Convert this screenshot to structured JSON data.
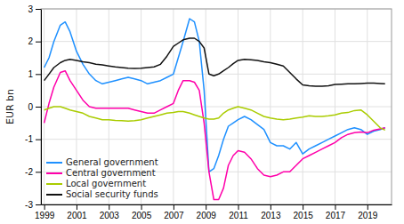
{
  "chart_data": {
    "type": "line",
    "y_label": "EUR bn",
    "x": [
      1999.0,
      1999.3,
      1999.6,
      2000.0,
      2000.3,
      2000.6,
      2001.0,
      2001.4,
      2001.8,
      2002.2,
      2002.6,
      2003.0,
      2003.4,
      2003.8,
      2004.2,
      2004.6,
      2005.0,
      2005.4,
      2005.8,
      2006.2,
      2006.6,
      2007.0,
      2007.3,
      2007.6,
      2008.0,
      2008.3,
      2008.6,
      2008.9,
      2009.2,
      2009.5,
      2009.8,
      2010.1,
      2010.4,
      2010.7,
      2011.0,
      2011.4,
      2011.8,
      2012.2,
      2012.6,
      2013.0,
      2013.4,
      2013.8,
      2014.2,
      2014.6,
      2015.0,
      2015.4,
      2015.8,
      2016.2,
      2016.6,
      2017.0,
      2017.4,
      2017.8,
      2018.2,
      2018.6,
      2019.0,
      2019.4,
      2019.8,
      2020.1
    ],
    "series": [
      {
        "name": "General government",
        "color": "#1E90FF",
        "values": [
          1.2,
          1.5,
          2.0,
          2.5,
          2.6,
          2.3,
          1.7,
          1.3,
          1.0,
          0.8,
          0.7,
          0.75,
          0.8,
          0.85,
          0.9,
          0.85,
          0.8,
          0.7,
          0.75,
          0.8,
          0.9,
          1.0,
          1.5,
          2.0,
          2.7,
          2.6,
          2.0,
          0.5,
          -2.0,
          -1.9,
          -1.5,
          -1.0,
          -0.6,
          -0.5,
          -0.4,
          -0.3,
          -0.4,
          -0.55,
          -0.7,
          -1.1,
          -1.2,
          -1.2,
          -1.3,
          -1.1,
          -1.45,
          -1.3,
          -1.2,
          -1.1,
          -1.0,
          -0.9,
          -0.8,
          -0.7,
          -0.65,
          -0.7,
          -0.85,
          -0.75,
          -0.7,
          -0.65
        ]
      },
      {
        "name": "Central government",
        "color": "#FF00AA",
        "values": [
          -0.5,
          0.1,
          0.6,
          1.05,
          1.1,
          0.8,
          0.5,
          0.2,
          0.0,
          -0.05,
          -0.05,
          -0.05,
          -0.05,
          -0.05,
          -0.05,
          -0.1,
          -0.15,
          -0.2,
          -0.2,
          -0.1,
          0.0,
          0.1,
          0.5,
          0.8,
          0.8,
          0.75,
          0.5,
          -0.5,
          -2.0,
          -2.85,
          -2.85,
          -2.5,
          -1.8,
          -1.5,
          -1.35,
          -1.4,
          -1.6,
          -1.9,
          -2.1,
          -2.15,
          -2.1,
          -2.0,
          -2.0,
          -1.8,
          -1.6,
          -1.5,
          -1.4,
          -1.3,
          -1.2,
          -1.1,
          -0.95,
          -0.85,
          -0.8,
          -0.78,
          -0.8,
          -0.72,
          -0.68,
          -0.65
        ]
      },
      {
        "name": "Local government",
        "color": "#AACC00",
        "values": [
          -0.1,
          -0.05,
          0.0,
          0.0,
          -0.05,
          -0.1,
          -0.15,
          -0.2,
          -0.3,
          -0.35,
          -0.4,
          -0.4,
          -0.42,
          -0.43,
          -0.44,
          -0.43,
          -0.4,
          -0.35,
          -0.3,
          -0.25,
          -0.2,
          -0.18,
          -0.15,
          -0.15,
          -0.2,
          -0.25,
          -0.3,
          -0.35,
          -0.38,
          -0.38,
          -0.35,
          -0.2,
          -0.1,
          -0.05,
          0.0,
          -0.05,
          -0.1,
          -0.2,
          -0.3,
          -0.35,
          -0.38,
          -0.4,
          -0.38,
          -0.35,
          -0.32,
          -0.28,
          -0.3,
          -0.3,
          -0.28,
          -0.25,
          -0.2,
          -0.18,
          -0.12,
          -0.1,
          -0.25,
          -0.45,
          -0.65,
          -0.72
        ]
      },
      {
        "name": "Social security funds",
        "color": "#111111",
        "values": [
          0.8,
          1.0,
          1.2,
          1.35,
          1.42,
          1.45,
          1.42,
          1.38,
          1.35,
          1.3,
          1.28,
          1.25,
          1.22,
          1.2,
          1.18,
          1.17,
          1.18,
          1.2,
          1.22,
          1.3,
          1.55,
          1.85,
          1.95,
          2.05,
          2.1,
          2.1,
          2.0,
          1.8,
          1.0,
          0.95,
          1.0,
          1.1,
          1.2,
          1.32,
          1.42,
          1.45,
          1.44,
          1.42,
          1.38,
          1.35,
          1.3,
          1.25,
          1.05,
          0.85,
          0.67,
          0.64,
          0.63,
          0.63,
          0.64,
          0.68,
          0.69,
          0.7,
          0.7,
          0.71,
          0.72,
          0.72,
          0.71,
          0.7
        ]
      }
    ],
    "xlim": [
      1998.8,
      2020.5
    ],
    "ylim": [
      -3,
      3
    ],
    "xticks": [
      1999,
      2001,
      2003,
      2005,
      2007,
      2009,
      2011,
      2013,
      2015,
      2017,
      2019
    ],
    "yticks": [
      -3,
      -2,
      -1,
      0,
      1,
      2,
      3
    ],
    "grid": true,
    "legend": "lower left"
  }
}
